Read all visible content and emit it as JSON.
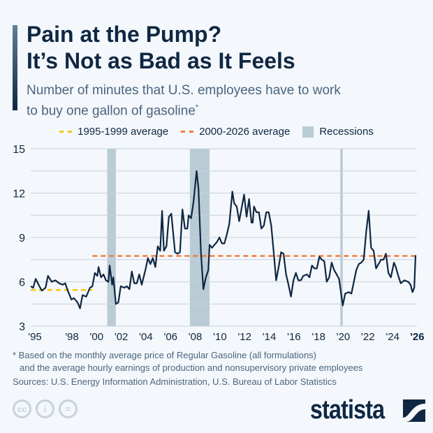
{
  "header": {
    "title_line1": "Pain at the Pump?",
    "title_line2": "It’s Not as Bad as It Feels",
    "subtitle_line1": "Number of minutes that U.S. employees have to work",
    "subtitle_line2": "to buy one gallon of gasoline",
    "subtitle_mark": "*"
  },
  "legend": {
    "avg1": "1995-1999 average",
    "avg2": "2000-2026 average",
    "recessions": "Recessions"
  },
  "colors": {
    "line": "#0f2742",
    "avg1": "#f5c800",
    "avg2": "#f47c3c",
    "recession": "#b9ccd6",
    "grid": "#c9d2dc"
  },
  "chart_data": {
    "type": "line",
    "title": "",
    "xlabel": "",
    "ylabel": "",
    "ylim": [
      3,
      15
    ],
    "yticks": [
      3,
      6,
      9,
      12,
      15
    ],
    "grid": true,
    "legend_placement": "top",
    "xticks": [
      {
        "year": 1995,
        "label": "'95"
      },
      {
        "year": 1998,
        "label": "'98"
      },
      {
        "year": 2000,
        "label": "'00"
      },
      {
        "year": 2002,
        "label": "'02"
      },
      {
        "year": 2004,
        "label": "'04"
      },
      {
        "year": 2006,
        "label": "'06"
      },
      {
        "year": 2008,
        "label": "'08"
      },
      {
        "year": 2010,
        "label": "'10"
      },
      {
        "year": 2012,
        "label": "'12"
      },
      {
        "year": 2014,
        "label": "'14"
      },
      {
        "year": 2016,
        "label": "'16"
      },
      {
        "year": 2018,
        "label": "'18"
      },
      {
        "year": 2020,
        "label": "'20"
      },
      {
        "year": 2022,
        "label": "'22"
      },
      {
        "year": 2024,
        "label": "'24"
      },
      {
        "year": 2026,
        "label": "'26",
        "bold": true
      }
    ],
    "averages": [
      {
        "name": "1995-1999 average",
        "from": 1995,
        "to": 2000,
        "value": 5.45
      },
      {
        "name": "2000-2026 average",
        "from": 2000,
        "to": 2026.2,
        "value": 7.75
      }
    ],
    "recessions": [
      [
        2001.2,
        2001.9
      ],
      [
        2007.9,
        2009.5
      ],
      [
        2020.1,
        2020.3
      ]
    ],
    "series": [
      {
        "points": [
          [
            1995.0,
            5.7
          ],
          [
            1995.2,
            5.6
          ],
          [
            1995.4,
            6.2
          ],
          [
            1995.7,
            5.7
          ],
          [
            1995.9,
            5.4
          ],
          [
            1996.2,
            5.6
          ],
          [
            1996.4,
            6.4
          ],
          [
            1996.7,
            6.0
          ],
          [
            1997.0,
            6.1
          ],
          [
            1997.3,
            5.9
          ],
          [
            1997.6,
            5.8
          ],
          [
            1997.8,
            5.9
          ],
          [
            1998.0,
            5.4
          ],
          [
            1998.3,
            4.8
          ],
          [
            1998.5,
            4.9
          ],
          [
            1998.8,
            4.6
          ],
          [
            1999.0,
            4.2
          ],
          [
            1999.2,
            5.1
          ],
          [
            1999.5,
            5.0
          ],
          [
            1999.8,
            5.6
          ],
          [
            2000.0,
            5.7
          ],
          [
            2000.2,
            6.6
          ],
          [
            2000.4,
            6.4
          ],
          [
            2000.5,
            7.0
          ],
          [
            2000.7,
            6.3
          ],
          [
            2000.9,
            6.5
          ],
          [
            2001.1,
            6.1
          ],
          [
            2001.3,
            6.0
          ],
          [
            2001.4,
            7.1
          ],
          [
            2001.6,
            5.8
          ],
          [
            2001.7,
            6.3
          ],
          [
            2001.9,
            4.5
          ],
          [
            2002.1,
            4.6
          ],
          [
            2002.3,
            5.7
          ],
          [
            2002.6,
            5.6
          ],
          [
            2002.8,
            5.7
          ],
          [
            2003.0,
            5.5
          ],
          [
            2003.2,
            6.7
          ],
          [
            2003.4,
            5.9
          ],
          [
            2003.6,
            5.9
          ],
          [
            2003.8,
            6.5
          ],
          [
            2004.0,
            5.8
          ],
          [
            2004.3,
            6.8
          ],
          [
            2004.5,
            7.6
          ],
          [
            2004.7,
            7.2
          ],
          [
            2004.9,
            7.6
          ],
          [
            2005.1,
            7.0
          ],
          [
            2005.3,
            8.4
          ],
          [
            2005.5,
            8.1
          ],
          [
            2005.65,
            10.8
          ],
          [
            2005.8,
            8.1
          ],
          [
            2006.0,
            8.4
          ],
          [
            2006.2,
            10.4
          ],
          [
            2006.4,
            10.6
          ],
          [
            2006.7,
            8.0
          ],
          [
            2006.9,
            7.9
          ],
          [
            2007.1,
            8.0
          ],
          [
            2007.3,
            10.9
          ],
          [
            2007.5,
            9.6
          ],
          [
            2007.7,
            9.6
          ],
          [
            2007.8,
            10.5
          ],
          [
            2008.0,
            10.3
          ],
          [
            2008.2,
            11.4
          ],
          [
            2008.45,
            13.5
          ],
          [
            2008.6,
            12.3
          ],
          [
            2008.8,
            8.0
          ],
          [
            2009.0,
            5.5
          ],
          [
            2009.2,
            6.3
          ],
          [
            2009.4,
            6.8
          ],
          [
            2009.5,
            8.5
          ],
          [
            2009.7,
            8.3
          ],
          [
            2009.9,
            8.5
          ],
          [
            2010.1,
            8.7
          ],
          [
            2010.3,
            9.0
          ],
          [
            2010.5,
            8.6
          ],
          [
            2010.7,
            8.6
          ],
          [
            2010.9,
            9.2
          ],
          [
            2011.1,
            9.9
          ],
          [
            2011.35,
            12.1
          ],
          [
            2011.5,
            11.3
          ],
          [
            2011.7,
            11.1
          ],
          [
            2011.9,
            10.1
          ],
          [
            2012.1,
            11.0
          ],
          [
            2012.3,
            11.9
          ],
          [
            2012.5,
            10.4
          ],
          [
            2012.7,
            11.6
          ],
          [
            2012.9,
            10.0
          ],
          [
            2013.0,
            10.0
          ],
          [
            2013.1,
            11.1
          ],
          [
            2013.3,
            10.7
          ],
          [
            2013.5,
            10.7
          ],
          [
            2013.7,
            9.6
          ],
          [
            2013.9,
            9.8
          ],
          [
            2014.1,
            10.7
          ],
          [
            2014.3,
            10.7
          ],
          [
            2014.5,
            9.8
          ],
          [
            2014.7,
            8.0
          ],
          [
            2014.9,
            6.1
          ],
          [
            2015.1,
            7.0
          ],
          [
            2015.3,
            8.0
          ],
          [
            2015.5,
            7.9
          ],
          [
            2015.7,
            6.5
          ],
          [
            2015.9,
            5.8
          ],
          [
            2016.1,
            5.0
          ],
          [
            2016.3,
            6.1
          ],
          [
            2016.5,
            6.6
          ],
          [
            2016.7,
            6.1
          ],
          [
            2016.9,
            6.1
          ],
          [
            2017.1,
            6.4
          ],
          [
            2017.4,
            6.5
          ],
          [
            2017.6,
            6.3
          ],
          [
            2017.8,
            7.1
          ],
          [
            2018.0,
            6.9
          ],
          [
            2018.2,
            6.9
          ],
          [
            2018.4,
            7.7
          ],
          [
            2018.6,
            7.5
          ],
          [
            2018.8,
            7.4
          ],
          [
            2019.0,
            6.0
          ],
          [
            2019.2,
            6.3
          ],
          [
            2019.4,
            7.3
          ],
          [
            2019.6,
            6.8
          ],
          [
            2019.8,
            6.5
          ],
          [
            2020.0,
            6.2
          ],
          [
            2020.2,
            5.0
          ],
          [
            2020.3,
            4.4
          ],
          [
            2020.5,
            5.2
          ],
          [
            2020.8,
            5.3
          ],
          [
            2021.0,
            5.2
          ],
          [
            2021.2,
            6.0
          ],
          [
            2021.4,
            6.8
          ],
          [
            2021.6,
            7.2
          ],
          [
            2021.8,
            7.3
          ],
          [
            2022.0,
            7.5
          ],
          [
            2022.2,
            9.4
          ],
          [
            2022.4,
            10.8
          ],
          [
            2022.6,
            8.3
          ],
          [
            2022.8,
            8.1
          ],
          [
            2023.0,
            6.9
          ],
          [
            2023.2,
            7.2
          ],
          [
            2023.4,
            7.5
          ],
          [
            2023.6,
            7.5
          ],
          [
            2023.8,
            7.9
          ],
          [
            2024.0,
            6.6
          ],
          [
            2024.2,
            6.3
          ],
          [
            2024.45,
            7.3
          ],
          [
            2024.6,
            7.0
          ],
          [
            2024.8,
            6.4
          ],
          [
            2025.0,
            5.9
          ],
          [
            2025.3,
            6.1
          ],
          [
            2025.6,
            6.0
          ],
          [
            2025.8,
            5.8
          ],
          [
            2025.95,
            5.3
          ],
          [
            2026.1,
            5.6
          ],
          [
            2026.2,
            7.8
          ]
        ]
      }
    ]
  },
  "footer": {
    "note_line1": "* Based on the monthly average price of Regular Gasoline (all formulations)",
    "note_line2": "and the average hourly earnings of production and nonsupervisory private employees",
    "sources": "Sources: U.S. Energy Information Administration, U.S. Bureau of Labor Statistics",
    "cc": "cc",
    "by": "i",
    "nd": "=",
    "logo": "statista"
  }
}
